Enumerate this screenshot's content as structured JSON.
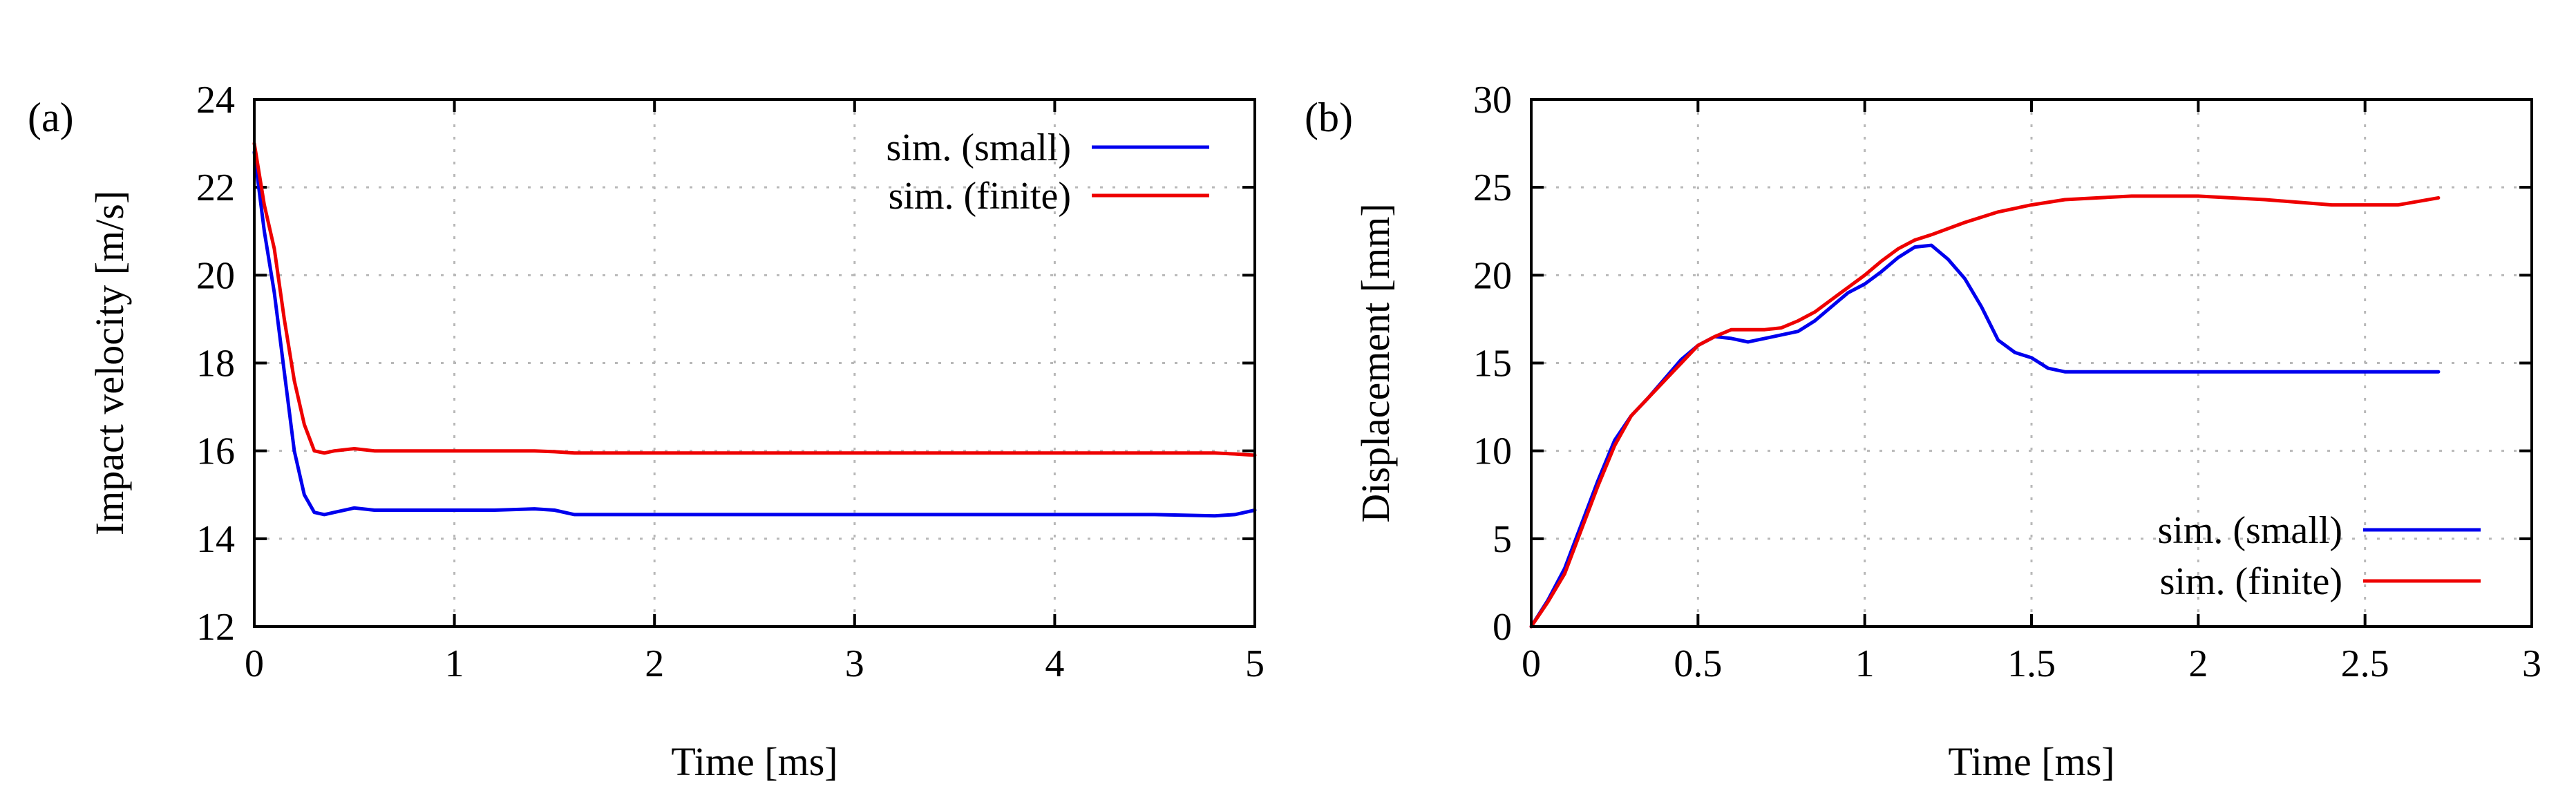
{
  "chart_data": [
    {
      "panel_label": "(a)",
      "type": "line",
      "xlabel": "Time [ms]",
      "ylabel": "Impact velocity [m/s]",
      "xlim": [
        0,
        5
      ],
      "ylim": [
        12,
        24
      ],
      "xticks": [
        0,
        1,
        2,
        3,
        4,
        5
      ],
      "xtick_labels": [
        "0",
        "1",
        "2",
        "3",
        "4",
        "5"
      ],
      "yticks": [
        12,
        14,
        16,
        18,
        20,
        22,
        24
      ],
      "ytick_labels": [
        "12",
        "14",
        "16",
        "18",
        "20",
        "22",
        "24"
      ],
      "grid": true,
      "legend_position": "top-right",
      "series": [
        {
          "name": "sim. (small)",
          "color": "#0000ee",
          "x": [
            0,
            0.05,
            0.1,
            0.15,
            0.2,
            0.25,
            0.3,
            0.35,
            0.4,
            0.5,
            0.6,
            0.8,
            1.0,
            1.2,
            1.4,
            1.5,
            1.6,
            2,
            3,
            4,
            4.5,
            4.8,
            4.9,
            5
          ],
          "y": [
            22.8,
            21.0,
            19.6,
            17.8,
            16.0,
            15.0,
            14.6,
            14.55,
            14.6,
            14.7,
            14.65,
            14.65,
            14.65,
            14.65,
            14.68,
            14.65,
            14.55,
            14.55,
            14.55,
            14.55,
            14.55,
            14.52,
            14.55,
            14.65
          ]
        },
        {
          "name": "sim. (finite)",
          "color": "#ee0000",
          "x": [
            0,
            0.05,
            0.1,
            0.15,
            0.2,
            0.25,
            0.3,
            0.35,
            0.4,
            0.5,
            0.6,
            0.8,
            1.0,
            1.2,
            1.4,
            1.5,
            1.6,
            2,
            3,
            4,
            4.5,
            4.8,
            4.9,
            5
          ],
          "y": [
            23.0,
            21.6,
            20.6,
            19.0,
            17.6,
            16.6,
            16.0,
            15.95,
            16.0,
            16.05,
            16.0,
            16.0,
            16.0,
            16.0,
            16.0,
            15.98,
            15.95,
            15.95,
            15.95,
            15.95,
            15.95,
            15.95,
            15.93,
            15.9
          ]
        }
      ]
    },
    {
      "panel_label": "(b)",
      "type": "line",
      "xlabel": "Time [ms]",
      "ylabel": "Displacement [mm]",
      "xlim": [
        0,
        3
      ],
      "ylim": [
        0,
        30
      ],
      "xticks": [
        0,
        0.5,
        1,
        1.5,
        2,
        2.5,
        3
      ],
      "xtick_labels": [
        "0",
        "0.5",
        "1",
        "1.5",
        "2",
        "2.5",
        "3"
      ],
      "yticks": [
        0,
        5,
        10,
        15,
        20,
        25,
        30
      ],
      "ytick_labels": [
        "0",
        "5",
        "10",
        "15",
        "20",
        "25",
        "30"
      ],
      "grid": true,
      "legend_position": "bottom-right",
      "series": [
        {
          "name": "sim. (small)",
          "color": "#0000ee",
          "x": [
            0,
            0.05,
            0.1,
            0.15,
            0.2,
            0.25,
            0.3,
            0.35,
            0.4,
            0.45,
            0.5,
            0.55,
            0.6,
            0.65,
            0.7,
            0.75,
            0.8,
            0.85,
            0.9,
            0.95,
            1.0,
            1.05,
            1.1,
            1.15,
            1.2,
            1.25,
            1.3,
            1.35,
            1.4,
            1.45,
            1.5,
            1.55,
            1.6,
            2.0,
            2.5,
            2.72
          ],
          "y": [
            0,
            1.5,
            3.3,
            5.8,
            8.3,
            10.6,
            12.0,
            13.0,
            14.1,
            15.2,
            16.0,
            16.5,
            16.4,
            16.2,
            16.4,
            16.6,
            16.8,
            17.4,
            18.2,
            19.0,
            19.5,
            20.2,
            21.0,
            21.6,
            21.7,
            20.9,
            19.8,
            18.2,
            16.3,
            15.6,
            15.3,
            14.7,
            14.5,
            14.5,
            14.5,
            14.5
          ]
        },
        {
          "name": "sim. (finite)",
          "color": "#ee0000",
          "x": [
            0,
            0.05,
            0.1,
            0.15,
            0.2,
            0.25,
            0.3,
            0.35,
            0.4,
            0.45,
            0.5,
            0.55,
            0.6,
            0.65,
            0.7,
            0.75,
            0.8,
            0.85,
            0.9,
            0.95,
            1.0,
            1.05,
            1.1,
            1.15,
            1.2,
            1.3,
            1.4,
            1.5,
            1.6,
            1.7,
            1.8,
            2.0,
            2.2,
            2.4,
            2.6,
            2.72
          ],
          "y": [
            0,
            1.4,
            3.0,
            5.5,
            8.0,
            10.3,
            12.0,
            13.0,
            14.0,
            15.0,
            16.0,
            16.5,
            16.9,
            16.9,
            16.9,
            17.0,
            17.4,
            17.9,
            18.6,
            19.3,
            20.0,
            20.8,
            21.5,
            22.0,
            22.3,
            23.0,
            23.6,
            24.0,
            24.3,
            24.4,
            24.5,
            24.5,
            24.3,
            24.0,
            24.0,
            24.4
          ]
        }
      ]
    }
  ]
}
